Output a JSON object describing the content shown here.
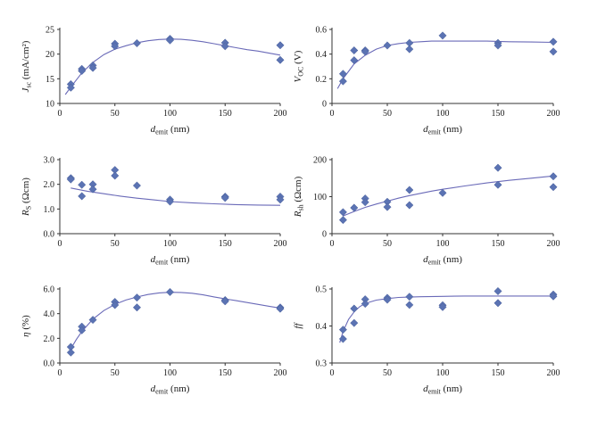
{
  "colors": {
    "marker": "#5b73b3",
    "curve": "#6a6ab8",
    "axis": "#333333"
  },
  "marker_shape": "diamond",
  "chart_data": [
    {
      "id": "jsc",
      "type": "scatter",
      "xlabel_main": "d",
      "xlabel_sub": "emit",
      "xlabel_unit": " (nm)",
      "ylabel_main": "J",
      "ylabel_sub": "sc",
      "ylabel_unit": " (mA/cm²)",
      "xlim": [
        0,
        200
      ],
      "ylim": [
        10,
        25
      ],
      "xticks": [
        "0",
        "50",
        "100",
        "150",
        "200"
      ],
      "yticks": [
        "10",
        "15",
        "20",
        "25"
      ],
      "ytick_values": [
        10,
        15,
        20,
        25
      ],
      "points": [
        [
          10,
          13.9
        ],
        [
          10,
          13.2
        ],
        [
          20,
          17.0
        ],
        [
          20,
          16.6
        ],
        [
          30,
          17.7
        ],
        [
          30,
          17.2
        ],
        [
          50,
          22.1
        ],
        [
          50,
          21.6
        ],
        [
          70,
          22.2
        ],
        [
          100,
          23.1
        ],
        [
          100,
          22.8
        ],
        [
          150,
          22.3
        ],
        [
          150,
          21.6
        ],
        [
          200,
          21.8
        ],
        [
          200,
          18.8
        ]
      ],
      "fit": [
        [
          5,
          11.8
        ],
        [
          10,
          13.3
        ],
        [
          20,
          16.2
        ],
        [
          30,
          18.3
        ],
        [
          40,
          19.9
        ],
        [
          50,
          21.0
        ],
        [
          60,
          21.7
        ],
        [
          70,
          22.3
        ],
        [
          80,
          22.7
        ],
        [
          90,
          22.95
        ],
        [
          100,
          23.05
        ],
        [
          110,
          23.0
        ],
        [
          120,
          22.8
        ],
        [
          130,
          22.5
        ],
        [
          140,
          22.1
        ],
        [
          150,
          21.7
        ],
        [
          160,
          21.3
        ],
        [
          170,
          20.9
        ],
        [
          180,
          20.6
        ],
        [
          190,
          20.2
        ],
        [
          200,
          19.8
        ]
      ]
    },
    {
      "id": "voc",
      "type": "scatter",
      "xlabel_main": "d",
      "xlabel_sub": "emit",
      "xlabel_unit": " (nm)",
      "ylabel_main": "V",
      "ylabel_sub": "OC",
      "ylabel_unit": " (V)",
      "xlim": [
        0,
        200
      ],
      "ylim": [
        0,
        0.6
      ],
      "xticks": [
        "0",
        "50",
        "100",
        "150",
        "200"
      ],
      "yticks": [
        "0",
        "0.2",
        "0.4",
        "0.6"
      ],
      "ytick_values": [
        0,
        0.2,
        0.4,
        0.6
      ],
      "points": [
        [
          10,
          0.24
        ],
        [
          10,
          0.18
        ],
        [
          20,
          0.43
        ],
        [
          20,
          0.35
        ],
        [
          30,
          0.43
        ],
        [
          30,
          0.42
        ],
        [
          50,
          0.47
        ],
        [
          70,
          0.49
        ],
        [
          70,
          0.44
        ],
        [
          100,
          0.55
        ],
        [
          150,
          0.49
        ],
        [
          150,
          0.47
        ],
        [
          200,
          0.5
        ],
        [
          200,
          0.42
        ]
      ],
      "fit": [
        [
          5,
          0.12
        ],
        [
          10,
          0.2
        ],
        [
          15,
          0.26
        ],
        [
          20,
          0.32
        ],
        [
          30,
          0.39
        ],
        [
          40,
          0.44
        ],
        [
          50,
          0.47
        ],
        [
          60,
          0.485
        ],
        [
          70,
          0.495
        ],
        [
          80,
          0.5
        ],
        [
          90,
          0.505
        ],
        [
          100,
          0.505
        ],
        [
          120,
          0.505
        ],
        [
          140,
          0.505
        ],
        [
          160,
          0.5
        ],
        [
          180,
          0.498
        ],
        [
          200,
          0.495
        ]
      ]
    },
    {
      "id": "rs",
      "type": "scatter",
      "xlabel_main": "d",
      "xlabel_sub": "emit",
      "xlabel_unit": " (nm)",
      "ylabel_main": "R",
      "ylabel_sub": "S",
      "ylabel_unit": " (Ωcm)",
      "xlim": [
        0,
        200
      ],
      "ylim": [
        0,
        3.0
      ],
      "xticks": [
        "0",
        "50",
        "100",
        "150",
        "200"
      ],
      "yticks": [
        "0.0",
        "1.0",
        "2.0",
        "3.0"
      ],
      "ytick_values": [
        0,
        1,
        2,
        3
      ],
      "points": [
        [
          10,
          2.25
        ],
        [
          10,
          2.2
        ],
        [
          20,
          1.98
        ],
        [
          20,
          1.52
        ],
        [
          30,
          2.0
        ],
        [
          30,
          1.8
        ],
        [
          50,
          2.58
        ],
        [
          50,
          2.35
        ],
        [
          70,
          1.95
        ],
        [
          100,
          1.38
        ],
        [
          100,
          1.3
        ],
        [
          150,
          1.5
        ],
        [
          150,
          1.45
        ],
        [
          200,
          1.5
        ],
        [
          200,
          1.38
        ]
      ],
      "fit": [
        [
          10,
          1.85
        ],
        [
          25,
          1.72
        ],
        [
          40,
          1.62
        ],
        [
          55,
          1.52
        ],
        [
          70,
          1.44
        ],
        [
          85,
          1.37
        ],
        [
          100,
          1.3
        ],
        [
          120,
          1.25
        ],
        [
          140,
          1.21
        ],
        [
          160,
          1.18
        ],
        [
          180,
          1.16
        ],
        [
          200,
          1.15
        ]
      ]
    },
    {
      "id": "rsh",
      "type": "scatter",
      "xlabel_main": "d",
      "xlabel_sub": "emit",
      "xlabel_unit": " (nm)",
      "ylabel_main": "R",
      "ylabel_sub": "sh",
      "ylabel_unit": " (Ωcm)",
      "xlim": [
        0,
        200
      ],
      "ylim": [
        0,
        200
      ],
      "xticks": [
        "0",
        "50",
        "100",
        "150",
        "200"
      ],
      "yticks": [
        "0",
        "100",
        "200"
      ],
      "ytick_values": [
        0,
        100,
        200
      ],
      "points": [
        [
          10,
          58
        ],
        [
          10,
          37
        ],
        [
          20,
          70
        ],
        [
          30,
          95
        ],
        [
          30,
          85
        ],
        [
          50,
          86
        ],
        [
          50,
          72
        ],
        [
          70,
          118
        ],
        [
          70,
          77
        ],
        [
          100,
          110
        ],
        [
          150,
          178
        ],
        [
          150,
          132
        ],
        [
          200,
          155
        ],
        [
          200,
          126
        ]
      ],
      "fit": [
        [
          10,
          48
        ],
        [
          20,
          60
        ],
        [
          30,
          71
        ],
        [
          40,
          80
        ],
        [
          50,
          88
        ],
        [
          60,
          96
        ],
        [
          70,
          103
        ],
        [
          80,
          109
        ],
        [
          90,
          115
        ],
        [
          100,
          120
        ],
        [
          120,
          129
        ],
        [
          140,
          137
        ],
        [
          160,
          144
        ],
        [
          180,
          150
        ],
        [
          200,
          156
        ]
      ]
    },
    {
      "id": "eta",
      "type": "scatter",
      "xlabel_main": "d",
      "xlabel_sub": "emit",
      "xlabel_unit": " (nm)",
      "ylabel_main": "η",
      "ylabel_sub": "",
      "ylabel_unit": " (%)",
      "xlim": [
        0,
        200
      ],
      "ylim": [
        0,
        6.0
      ],
      "xticks": [
        "0",
        "50",
        "100",
        "150",
        "200"
      ],
      "yticks": [
        "0.0",
        "2.0",
        "4.0",
        "6.0"
      ],
      "ytick_values": [
        0,
        2,
        4,
        6
      ],
      "points": [
        [
          10,
          1.3
        ],
        [
          10,
          0.85
        ],
        [
          20,
          2.95
        ],
        [
          20,
          2.65
        ],
        [
          30,
          3.5
        ],
        [
          50,
          4.95
        ],
        [
          50,
          4.7
        ],
        [
          70,
          5.3
        ],
        [
          70,
          4.5
        ],
        [
          100,
          5.75
        ],
        [
          150,
          5.1
        ],
        [
          150,
          5.0
        ],
        [
          200,
          4.5
        ],
        [
          200,
          4.4
        ]
      ],
      "fit": [
        [
          8,
          0.85
        ],
        [
          15,
          1.9
        ],
        [
          20,
          2.55
        ],
        [
          30,
          3.55
        ],
        [
          40,
          4.25
        ],
        [
          50,
          4.75
        ],
        [
          60,
          5.1
        ],
        [
          70,
          5.35
        ],
        [
          80,
          5.55
        ],
        [
          90,
          5.68
        ],
        [
          100,
          5.73
        ],
        [
          110,
          5.72
        ],
        [
          120,
          5.65
        ],
        [
          130,
          5.52
        ],
        [
          140,
          5.36
        ],
        [
          150,
          5.2
        ],
        [
          160,
          5.05
        ],
        [
          170,
          4.9
        ],
        [
          180,
          4.75
        ],
        [
          190,
          4.6
        ],
        [
          200,
          4.45
        ]
      ]
    },
    {
      "id": "ff",
      "type": "scatter",
      "xlabel_main": "d",
      "xlabel_sub": "emit",
      "xlabel_unit": " (nm)",
      "ylabel_main": "ff",
      "ylabel_sub": "",
      "ylabel_unit": "",
      "xlim": [
        0,
        200
      ],
      "ylim": [
        0.3,
        0.5
      ],
      "xticks": [
        "0",
        "50",
        "100",
        "150",
        "200"
      ],
      "yticks": [
        "0.3",
        "0.4",
        "0.5"
      ],
      "ytick_values": [
        0.3,
        0.4,
        0.5
      ],
      "points": [
        [
          10,
          0.39
        ],
        [
          10,
          0.365
        ],
        [
          20,
          0.447
        ],
        [
          20,
          0.408
        ],
        [
          30,
          0.472
        ],
        [
          30,
          0.46
        ],
        [
          50,
          0.476
        ],
        [
          50,
          0.471
        ],
        [
          70,
          0.479
        ],
        [
          70,
          0.457
        ],
        [
          100,
          0.456
        ],
        [
          100,
          0.451
        ],
        [
          150,
          0.494
        ],
        [
          150,
          0.462
        ],
        [
          200,
          0.485
        ],
        [
          200,
          0.48
        ]
      ],
      "fit": [
        [
          7,
          0.355
        ],
        [
          10,
          0.385
        ],
        [
          15,
          0.418
        ],
        [
          20,
          0.438
        ],
        [
          25,
          0.452
        ],
        [
          30,
          0.461
        ],
        [
          40,
          0.47
        ],
        [
          50,
          0.474
        ],
        [
          60,
          0.477
        ],
        [
          70,
          0.478
        ],
        [
          80,
          0.479
        ],
        [
          100,
          0.48
        ],
        [
          120,
          0.481
        ],
        [
          150,
          0.481
        ],
        [
          175,
          0.481
        ],
        [
          200,
          0.481
        ]
      ]
    }
  ]
}
